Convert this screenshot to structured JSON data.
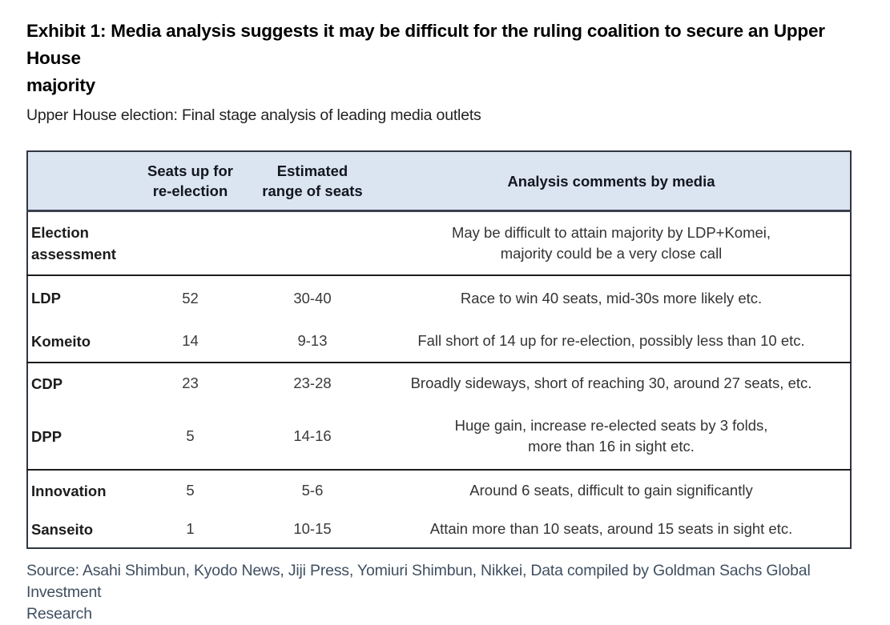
{
  "exhibit": {
    "title": "Exhibit 1: Media analysis suggests it may be difficult for the ruling coalition to secure an Upper House\nmajority",
    "subtitle": "Upper House election: Final stage analysis of leading media outlets"
  },
  "table": {
    "columns": [
      "",
      "Seats up for\nre-election",
      "Estimated\nrange of seats",
      "Analysis comments by media"
    ],
    "assessment": {
      "label": "Election\nassessment",
      "comment": "May be difficult to attain majority by LDP+Komei,\nmajority could be a very close call"
    },
    "rows": [
      {
        "party": "LDP",
        "seats": "52",
        "range": "30-40",
        "comment": "Race to win 40 seats, mid-30s more likely etc."
      },
      {
        "party": "Komeito",
        "seats": "14",
        "range": "9-13",
        "comment": "Fall short of 14 up for re-election, possibly less than 10 etc."
      },
      {
        "party": "CDP",
        "seats": "23",
        "range": "23-28",
        "comment": "Broadly sideways, short of reaching 30, around 27 seats, etc."
      },
      {
        "party": "DPP",
        "seats": "5",
        "range": "14-16",
        "comment": "Huge gain, increase re-elected seats by 3 folds,\nmore than 16 in sight etc."
      },
      {
        "party": "Innovation",
        "seats": "5",
        "range": "5-6",
        "comment": "Around 6 seats, difficult to gain significantly"
      },
      {
        "party": "Sanseito",
        "seats": "1",
        "range": "10-15",
        "comment": "Attain more than 10 seats, around 15 seats in sight etc."
      }
    ]
  },
  "source": "Source: Asahi Shimbun, Kyodo News, Jiji Press, Yomiuri Shimbun, Nikkei, Data compiled by Goldman Sachs Global Investment\nResearch",
  "colors": {
    "header_bg": "#dbe5f1",
    "header_text": "#12161f",
    "table_border": "#2f3741",
    "group_divider": "#1d1d1d",
    "body_text": "#343434",
    "source_text": "#3f4f61"
  }
}
